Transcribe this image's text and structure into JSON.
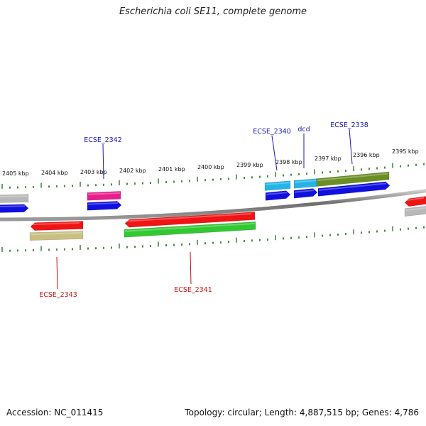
{
  "title": "Escherichia coli SE11, complete genome",
  "footer": {
    "accession": "Accession: NC_011415",
    "summary": "Topology: circular; Length: 4,887,515 bp; Genes: 4,786"
  },
  "colors": {
    "label_forward": "#1a1ab8",
    "label_reverse": "#c81010",
    "tick": "#1a6e1a",
    "backbone": "#8a8a8a"
  },
  "scale_labels": [
    "2405 kbp",
    "2404 kbp",
    "2403 kbp",
    "2402 kbp",
    "2401 kbp",
    "2400 kbp",
    "2399 kbp",
    "2398 kbp",
    "2397 kbp",
    "2396 kbp",
    "2395 kbp"
  ],
  "features": [
    {
      "id": "top-gray",
      "strand": "top",
      "start": -1,
      "end": 40,
      "color": "#b8b8b8",
      "arrow": false
    },
    {
      "id": "top-blue-1",
      "strand": "top",
      "start": -1,
      "end": 40,
      "color": "#1010e0",
      "arrow": true
    },
    {
      "id": "top-pink",
      "strand": "top",
      "start": 123,
      "end": 170,
      "color": "#e81e8c",
      "arrow": false
    },
    {
      "id": "top-blue-2",
      "strand": "top",
      "start": 123,
      "end": 171,
      "color": "#1010e0",
      "arrow": true
    },
    {
      "id": "top-cyan-1",
      "strand": "top",
      "start": 373,
      "end": 409,
      "color": "#22b4e6",
      "arrow": false
    },
    {
      "id": "top-blue-3",
      "strand": "top",
      "start": 374,
      "end": 409,
      "color": "#1010e0",
      "arrow": true
    },
    {
      "id": "top-cyan-2",
      "strand": "top",
      "start": 414,
      "end": 446,
      "color": "#22b4e6",
      "arrow": false
    },
    {
      "id": "top-blue-4",
      "strand": "top",
      "start": 414,
      "end": 447,
      "color": "#1010e0",
      "arrow": true
    },
    {
      "id": "top-olive",
      "strand": "top",
      "start": 446,
      "end": 548,
      "color": "#6b8e23",
      "arrow": false
    },
    {
      "id": "top-blue-5",
      "strand": "top",
      "start": 448,
      "end": 549,
      "color": "#1010e0",
      "arrow": true
    },
    {
      "id": "bot-red-1",
      "strand": "bottom",
      "start": 43,
      "end": 117,
      "color": "#f01414",
      "arrow": true
    },
    {
      "id": "bot-khaki",
      "strand": "bottom",
      "start": 42,
      "end": 117,
      "color": "#c8c080",
      "arrow": false
    },
    {
      "id": "bot-red-2",
      "strand": "bottom",
      "start": 176,
      "end": 359,
      "color": "#f01414",
      "arrow": true
    },
    {
      "id": "bot-green",
      "strand": "bottom",
      "start": 175,
      "end": 360,
      "color": "#32c832",
      "arrow": false
    },
    {
      "id": "bot-red-3",
      "strand": "bottom",
      "start": 570,
      "end": 602,
      "color": "#f01414",
      "arrow": true
    },
    {
      "id": "bot-gray",
      "strand": "bottom",
      "start": 570,
      "end": 602,
      "color": "#b8b8b8",
      "arrow": false
    }
  ],
  "gene_labels": [
    {
      "text": "ECSE_2342",
      "strand": "forward"
    },
    {
      "text": "ECSE_2340",
      "strand": "forward"
    },
    {
      "text": "dcd",
      "strand": "forward"
    },
    {
      "text": "ECSE_2338",
      "strand": "forward"
    },
    {
      "text": "ECSE_2343",
      "strand": "reverse"
    },
    {
      "text": "ECSE_2341",
      "strand": "reverse"
    }
  ]
}
